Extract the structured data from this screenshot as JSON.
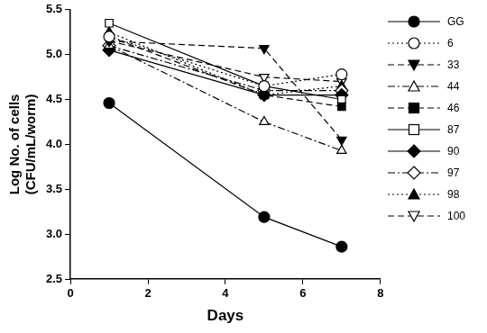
{
  "chart_data": {
    "type": "line",
    "x_label": "Days",
    "y_label": [
      "Log No. of cells",
      "(CFU/mL/worm)"
    ],
    "xlim": [
      0,
      8
    ],
    "xticks": [
      0,
      2,
      4,
      6,
      8
    ],
    "ylim": [
      2.5,
      5.5
    ],
    "yticks": [
      2.5,
      {
        "value": 3,
        "label": "3.0"
      },
      3.5,
      {
        "value": 4,
        "label": "4.0"
      },
      4.5,
      {
        "value": 5,
        "label": "5.0"
      },
      5.5
    ],
    "grid": false,
    "legend": "right",
    "x": [
      1,
      5,
      7
    ],
    "series": [
      {
        "name": "GG",
        "color": "#000000",
        "marker": "circle",
        "line_style": "solid",
        "values": [
          4.46,
          3.19,
          2.86
        ]
      },
      {
        "name": "6",
        "color": "#000000",
        "marker": "circle-open",
        "line_style": "dotted",
        "values": [
          5.2,
          4.65,
          4.78
        ]
      },
      {
        "name": "33",
        "color": "#000000",
        "marker": "triangle-down",
        "line_style": "dashed",
        "values": [
          5.15,
          5.07,
          4.05
        ]
      },
      {
        "name": "44",
        "color": "#000000",
        "marker": "triangle-open",
        "line_style": "dashdot",
        "values": [
          5.1,
          4.25,
          3.93
        ]
      },
      {
        "name": "46",
        "color": "#000000",
        "marker": "square",
        "line_style": "dashed",
        "values": [
          5.2,
          4.55,
          4.42
        ]
      },
      {
        "name": "87",
        "color": "#000000",
        "marker": "square-open",
        "line_style": "solid",
        "values": [
          5.35,
          4.65,
          4.5
        ]
      },
      {
        "name": "90",
        "color": "#000000",
        "marker": "diamond",
        "line_style": "solid",
        "values": [
          5.05,
          4.55,
          4.55
        ]
      },
      {
        "name": "97",
        "color": "#000000",
        "marker": "diamond-open",
        "line_style": "dashdot",
        "values": [
          5.1,
          4.6,
          4.6
        ]
      },
      {
        "name": "98",
        "color": "#000000",
        "marker": "triangle",
        "line_style": "dotted",
        "values": [
          5.25,
          4.55,
          4.65
        ]
      },
      {
        "name": "100",
        "color": "#000000",
        "marker": "triangle-down-open",
        "line_style": "dashed",
        "values": [
          5.15,
          4.75,
          4.7
        ]
      }
    ]
  }
}
